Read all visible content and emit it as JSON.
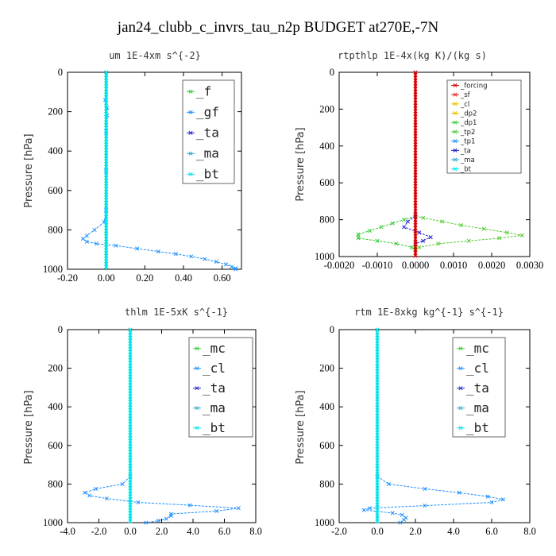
{
  "figure_title": "jan24_clubb_c_invrs_tau_n2p  BUDGET at270E,-7N",
  "colors": {
    "frame": "#000000",
    "zero_line": "#000000",
    "f": "#33cc33",
    "gf": "#1e90ff",
    "ta": "#2222cc",
    "ma": "#33aacc",
    "bt": "#00e5ee",
    "forcing": "#dd0000",
    "sf": "#ee2222",
    "cl_small": "#e6c300",
    "dp2": "#e6c300",
    "dp1": "#33cc33",
    "tp2": "#55cc33",
    "tp1": "#1e90ff",
    "mc": "#33cc33",
    "cl": "#1e90ff"
  },
  "chart_data": [
    {
      "type": "line",
      "title": "um   1E-4xm s^{-2}",
      "ylabel": "Pressure [hPa]",
      "xlim": [
        -0.2,
        0.7
      ],
      "ylim": [
        1000,
        0
      ],
      "xticks": [
        "-0.20",
        "0.00",
        "0.20",
        "0.40",
        "0.60"
      ],
      "xtick_values": [
        -0.2,
        0.0,
        0.2,
        0.4,
        0.6
      ],
      "yticks": [
        "0",
        "200",
        "400",
        "600",
        "800",
        "1000"
      ],
      "yticks_values": [
        0,
        200,
        400,
        600,
        800,
        1000
      ],
      "legend": {
        "style": "big",
        "entries": [
          "_f",
          "_gf",
          "_ta",
          "_ma",
          "_bt"
        ]
      },
      "series": [
        {
          "name": "_f",
          "color": "#33cc33",
          "marker": "x",
          "points": [
            [
              0,
              0
            ],
            [
              0,
              100
            ],
            [
              0,
              200
            ],
            [
              0,
              300
            ],
            [
              0,
              400
            ],
            [
              0,
              500
            ],
            [
              0,
              600
            ],
            [
              0,
              700
            ],
            [
              0,
              800
            ],
            [
              0,
              900
            ],
            [
              0,
              1000
            ]
          ]
        },
        {
          "name": "_gf",
          "color": "#1e90ff",
          "marker": "x",
          "points": [
            [
              0,
              0
            ],
            [
              -0.005,
              140
            ],
            [
              0.005,
              180
            ],
            [
              0.005,
              220
            ],
            [
              0,
              300
            ],
            [
              0,
              500
            ],
            [
              0,
              700
            ],
            [
              -0.01,
              760
            ],
            [
              -0.06,
              800
            ],
            [
              -0.1,
              830
            ],
            [
              -0.12,
              845
            ],
            [
              -0.1,
              860
            ],
            [
              -0.05,
              870
            ],
            [
              0.05,
              880
            ],
            [
              0.16,
              895
            ],
            [
              0.27,
              910
            ],
            [
              0.36,
              922
            ],
            [
              0.44,
              935
            ],
            [
              0.51,
              948
            ],
            [
              0.57,
              962
            ],
            [
              0.62,
              975
            ],
            [
              0.65,
              987
            ],
            [
              0.67,
              995
            ],
            [
              0.67,
              1000
            ]
          ]
        },
        {
          "name": "_bt",
          "color": "#00e5ee",
          "marker": "x",
          "points": [
            [
              0,
              0
            ],
            [
              0,
              200
            ],
            [
              0,
              400
            ],
            [
              0,
              600
            ],
            [
              0,
              800
            ],
            [
              0,
              1000
            ]
          ]
        }
      ]
    },
    {
      "type": "line",
      "title": "rtpthlp   1E-4x(kg K)/(kg s)",
      "ylabel": "Pressure [hPa]",
      "xlim": [
        -0.002,
        0.003
      ],
      "ylim": [
        1000,
        0
      ],
      "xticks": [
        "-0.0020",
        "-0.0010",
        "0.0000",
        "0.0010",
        "0.0020",
        "0.0030"
      ],
      "xtick_values": [
        -0.002,
        -0.001,
        0.0,
        0.001,
        0.002,
        0.003
      ],
      "yticks": [
        "0",
        "200",
        "400",
        "600",
        "800",
        "1000"
      ],
      "yticks_values": [
        0,
        200,
        400,
        600,
        800,
        1000
      ],
      "legend": {
        "style": "small",
        "entries": [
          "_forcing",
          "_sf",
          "_cl",
          "_dp2",
          "_dp1",
          "_tp2",
          "_tp1",
          "_ta",
          "_ma",
          "_bt"
        ]
      },
      "series": [
        {
          "name": "_tp2",
          "color": "#55cc33",
          "marker": "x",
          "points": [
            [
              0,
              780
            ],
            [
              0.0002,
              790
            ],
            [
              0.0007,
              810
            ],
            [
              0.0012,
              830
            ],
            [
              0.0018,
              850
            ],
            [
              0.0024,
              870
            ],
            [
              0.0028,
              885
            ],
            [
              0.0022,
              900
            ],
            [
              0.0014,
              915
            ],
            [
              0.0006,
              930
            ],
            [
              0.0001,
              950
            ],
            [
              0,
              960
            ]
          ]
        },
        {
          "name": "_dp1",
          "color": "#33cc33",
          "marker": "x",
          "points": [
            [
              0,
              780
            ],
            [
              -0.0003,
              800
            ],
            [
              -0.0006,
              820
            ],
            [
              -0.0009,
              840
            ],
            [
              -0.0012,
              860
            ],
            [
              -0.0015,
              880
            ],
            [
              -0.0015,
              900
            ],
            [
              -0.001,
              915
            ],
            [
              -0.0005,
              930
            ],
            [
              -0.0001,
              950
            ],
            [
              0,
              960
            ]
          ]
        },
        {
          "name": "_ta",
          "color": "#2222cc",
          "marker": "x",
          "points": [
            [
              0,
              780
            ],
            [
              -0.0002,
              810
            ],
            [
              -0.0003,
              840
            ],
            [
              0.0001,
              870
            ],
            [
              0.0004,
              895
            ],
            [
              0.0002,
              915
            ],
            [
              0,
              930
            ]
          ]
        },
        {
          "name": "_forcing",
          "color": "#dd0000",
          "marker": "x",
          "points": [
            [
              0,
              0
            ],
            [
              0,
              100
            ],
            [
              0,
              200
            ],
            [
              0,
              300
            ],
            [
              0,
              400
            ],
            [
              0,
              500
            ],
            [
              0,
              600
            ],
            [
              0,
              700
            ],
            [
              0,
              800
            ],
            [
              0,
              900
            ],
            [
              0,
              1000
            ]
          ]
        }
      ]
    },
    {
      "type": "line",
      "title": "thlm   1E-5xK s^{-1}",
      "ylabel": "Pressure [hPa]",
      "xlim": [
        -4.0,
        8.0
      ],
      "ylim": [
        1000,
        0
      ],
      "xticks": [
        "-4.0",
        "-2.0",
        "0.0",
        "2.0",
        "4.0",
        "6.0",
        "8.0"
      ],
      "xtick_values": [
        -4.0,
        -2.0,
        0.0,
        2.0,
        4.0,
        6.0,
        8.0
      ],
      "yticks": [
        "0",
        "200",
        "400",
        "600",
        "800",
        "1000"
      ],
      "yticks_values": [
        0,
        200,
        400,
        600,
        800,
        1000
      ],
      "legend": {
        "style": "big",
        "entries": [
          "_mc",
          "_cl",
          "_ta",
          "_ma",
          "_bt"
        ]
      },
      "series": [
        {
          "name": "_mc",
          "color": "#33cc33",
          "marker": "x",
          "points": [
            [
              0,
              0
            ],
            [
              0,
              100
            ],
            [
              0,
              200
            ],
            [
              0,
              300
            ],
            [
              0,
              400
            ],
            [
              0,
              500
            ],
            [
              0,
              600
            ],
            [
              0,
              700
            ],
            [
              0,
              800
            ],
            [
              0,
              900
            ],
            [
              0,
              1000
            ]
          ]
        },
        {
          "name": "_cl",
          "color": "#1e90ff",
          "marker": "x",
          "points": [
            [
              0,
              760
            ],
            [
              -0.5,
              800
            ],
            [
              -2.2,
              825
            ],
            [
              -2.9,
              845
            ],
            [
              -2.6,
              860
            ],
            [
              -1.5,
              875
            ],
            [
              0.5,
              895
            ],
            [
              3.8,
              910
            ],
            [
              6.9,
              925
            ],
            [
              5.5,
              940
            ],
            [
              2.6,
              955
            ],
            [
              2.6,
              965
            ],
            [
              2.3,
              980
            ],
            [
              1.8,
              990
            ],
            [
              1.0,
              1000
            ]
          ]
        },
        {
          "name": "_bt",
          "color": "#00e5ee",
          "marker": "x",
          "points": [
            [
              0,
              0
            ],
            [
              0,
              200
            ],
            [
              0,
              400
            ],
            [
              0,
              600
            ],
            [
              0,
              800
            ],
            [
              0,
              1000
            ]
          ]
        }
      ]
    },
    {
      "type": "line",
      "title": "rtm   1E-8xkg kg^{-1} s^{-1}",
      "ylabel": "Pressure [hPa]",
      "xlim": [
        -2.0,
        8.0
      ],
      "ylim": [
        1000,
        0
      ],
      "xticks": [
        "-2.0",
        "0.0",
        "2.0",
        "4.0",
        "6.0",
        "8.0"
      ],
      "xtick_values": [
        -2.0,
        0.0,
        2.0,
        4.0,
        6.0,
        8.0
      ],
      "yticks": [
        "0",
        "200",
        "400",
        "600",
        "800",
        "1000"
      ],
      "yticks_values": [
        0,
        200,
        400,
        600,
        800,
        1000
      ],
      "legend": {
        "style": "big",
        "entries": [
          "_mc",
          "_cl",
          "_ta",
          "_ma",
          "_bt"
        ]
      },
      "series": [
        {
          "name": "_mc",
          "color": "#33cc33",
          "marker": "x",
          "points": [
            [
              0,
              0
            ],
            [
              0,
              100
            ],
            [
              0,
              200
            ],
            [
              0,
              300
            ],
            [
              0,
              400
            ],
            [
              0,
              500
            ],
            [
              0,
              600
            ],
            [
              0,
              700
            ],
            [
              0,
              800
            ],
            [
              0,
              900
            ],
            [
              0,
              1000
            ]
          ]
        },
        {
          "name": "_cl",
          "color": "#1e90ff",
          "marker": "x",
          "points": [
            [
              0,
              760
            ],
            [
              0.6,
              800
            ],
            [
              2.5,
              825
            ],
            [
              4.3,
              845
            ],
            [
              5.8,
              865
            ],
            [
              6.6,
              880
            ],
            [
              6.0,
              895
            ],
            [
              2.5,
              912
            ],
            [
              -0.4,
              925
            ],
            [
              -0.7,
              935
            ],
            [
              0.8,
              950
            ],
            [
              1.3,
              960
            ],
            [
              1.5,
              975
            ],
            [
              1.4,
              985
            ],
            [
              1.2,
              1000
            ]
          ]
        },
        {
          "name": "_bt",
          "color": "#00e5ee",
          "marker": "x",
          "points": [
            [
              0,
              0
            ],
            [
              0,
              200
            ],
            [
              0,
              400
            ],
            [
              0,
              600
            ],
            [
              0,
              800
            ],
            [
              0,
              1000
            ]
          ]
        }
      ]
    }
  ]
}
